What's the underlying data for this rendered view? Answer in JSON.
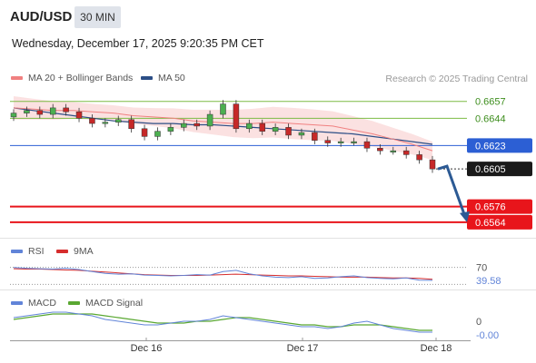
{
  "header": {
    "symbol": "AUD/USD",
    "timeframe": "30 MIN",
    "datetime": "Wednesday, December 17, 2025 9:20:35 PM CET"
  },
  "legend": {
    "ma20_label": "MA 20 + Bollinger Bands",
    "ma50_label": "MA 50",
    "rsi_label": "RSI",
    "rsi_ma_label": "9MA",
    "macd_label": "MACD",
    "macd_signal_label": "MACD Signal"
  },
  "credit": "Research © 2025 Trading Central",
  "colors": {
    "ma20": "#f08080",
    "ma50": "#2c4e86",
    "bollinger_fill": "#fadcdc",
    "level_green": "#7dbb45",
    "level_blue": "#2c5fd4",
    "level_red": "#e8151b",
    "arrow": "#2c5a94",
    "rsi": "#6184d8",
    "rsi_ma": "#d62d2d",
    "macd": "#6184d8",
    "macd_signal": "#5aa832",
    "candle_up": "#4caf50",
    "candle_down": "#c62828"
  },
  "chart_data": [
    {
      "type": "line",
      "title": "AUD/USD price 30 MIN",
      "x_ticks": [
        "Dec 16",
        "Dec 17",
        "Dec 18"
      ],
      "ylim": [
        0.6552,
        0.6668
      ],
      "series": [
        {
          "name": "MA 20 + Bollinger Bands",
          "values": [
            0.6652,
            0.6651,
            0.665,
            0.665,
            0.6649,
            0.6648,
            0.6646,
            0.6645,
            0.6644,
            0.6642,
            0.6641,
            0.664,
            0.664,
            0.6641,
            0.664,
            0.6639,
            0.6638,
            0.6635,
            0.6632,
            0.6628,
            0.6624,
            0.6619
          ]
        },
        {
          "name": "MA 50",
          "values": [
            0.6652,
            0.665,
            0.6648,
            0.6646,
            0.6644,
            0.6642,
            0.6641,
            0.664,
            0.664,
            0.6639,
            0.6639,
            0.6638,
            0.6637,
            0.6636,
            0.6635,
            0.6634,
            0.6633,
            0.6632,
            0.663,
            0.6628,
            0.6626,
            0.6624
          ]
        }
      ],
      "close": [
        0.6648,
        0.665,
        0.6647,
        0.6652,
        0.6649,
        0.6644,
        0.664,
        0.6641,
        0.6643,
        0.6636,
        0.663,
        0.6634,
        0.6637,
        0.664,
        0.6638,
        0.6647,
        0.6655,
        0.6636,
        0.664,
        0.6634,
        0.6637,
        0.6631,
        0.6633,
        0.6627,
        0.6625,
        0.6626,
        0.6626,
        0.6621,
        0.6619,
        0.6619,
        0.6616,
        0.6612,
        0.6605
      ],
      "levels": [
        {
          "value": 0.6657,
          "label": "0.6657",
          "color": "#7dbb45"
        },
        {
          "value": 0.6644,
          "label": "0.6644",
          "color": "#7dbb45"
        },
        {
          "value": 0.6623,
          "label": "0.6623",
          "color": "#2c5fd4"
        },
        {
          "value": 0.6605,
          "label": "0.6605",
          "color": "#222222"
        },
        {
          "value": 0.6576,
          "label": "0.6576",
          "color": "#e8151b"
        },
        {
          "value": 0.6564,
          "label": "0.6564",
          "color": "#e8151b"
        }
      ],
      "forecast": {
        "from": 0.6605,
        "to": 0.6564
      }
    },
    {
      "type": "line",
      "title": "RSI",
      "ylim": [
        0,
        100
      ],
      "reference_lines": [
        70,
        30
      ],
      "last_value": "39.58",
      "series": [
        {
          "name": "RSI",
          "values": [
            70,
            68,
            67,
            66,
            68,
            65,
            60,
            56,
            54,
            55,
            52,
            51,
            50,
            51,
            53,
            52,
            60,
            63,
            55,
            50,
            47,
            46,
            48,
            44,
            45,
            48,
            50,
            46,
            44,
            43,
            45,
            40,
            39.58
          ]
        },
        {
          "name": "9MA",
          "values": [
            67,
            66,
            66,
            65,
            64,
            63,
            61,
            59,
            57,
            55,
            53,
            52,
            51,
            51,
            51,
            52,
            53,
            54,
            53,
            52,
            51,
            50,
            50,
            49,
            48,
            47,
            47,
            47,
            46,
            45,
            45,
            44,
            42
          ]
        }
      ],
      "y_labels": [
        "70",
        "39.58"
      ]
    },
    {
      "type": "line",
      "title": "MACD",
      "last_value": "-0.00",
      "y_labels": [
        "0",
        "-0.00"
      ],
      "series": [
        {
          "name": "MACD",
          "values": [
            0.0003,
            0.0004,
            0.0005,
            0.0006,
            0.0006,
            0.0005,
            0.0004,
            0.0002,
            0.0001,
            0.0,
            -0.0001,
            -0.0001,
            0.0,
            0.0001,
            0.0001,
            0.0002,
            0.0004,
            0.0003,
            0.0002,
            0.0001,
            0.0,
            -0.0001,
            -0.0002,
            -0.0002,
            -0.0003,
            -0.0002,
            0.0,
            0.0001,
            -0.0001,
            -0.0003,
            -0.0004,
            -0.0005,
            -0.0005
          ]
        },
        {
          "name": "MACD Signal",
          "values": [
            0.0002,
            0.0003,
            0.0004,
            0.0005,
            0.0005,
            0.0005,
            0.0005,
            0.0004,
            0.0003,
            0.0002,
            0.0001,
            0.0,
            0.0,
            0.0,
            0.0001,
            0.0001,
            0.0002,
            0.0003,
            0.0003,
            0.0002,
            0.0001,
            0.0,
            -0.0001,
            -0.0001,
            -0.0002,
            -0.0002,
            -0.0001,
            -0.0001,
            -0.0001,
            -0.0002,
            -0.0003,
            -0.0004,
            -0.0004
          ]
        }
      ]
    }
  ]
}
